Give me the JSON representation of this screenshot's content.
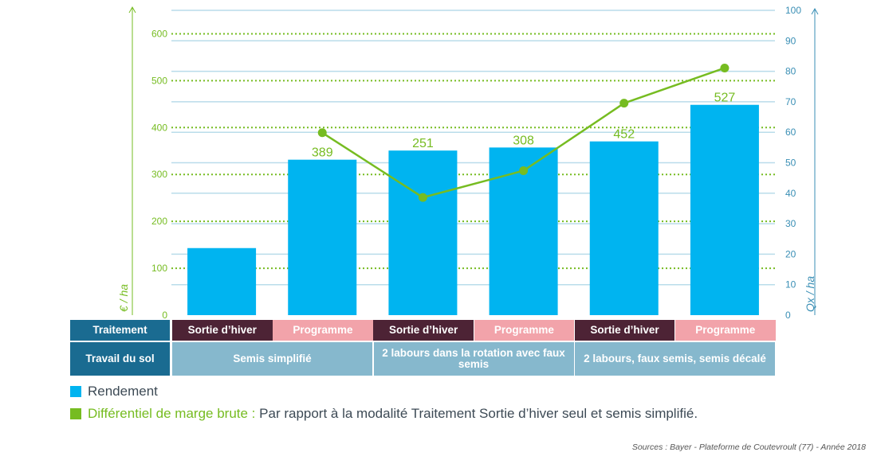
{
  "chart_data": {
    "type": "bar",
    "categories": [
      "Sortie d'hiver",
      "Programme",
      "Sortie d'hiver",
      "Programme",
      "Sortie d'hiver",
      "Programme"
    ],
    "series": [
      {
        "name": "Rendement",
        "kind": "bar",
        "axis": "right",
        "values": [
          22,
          51,
          54,
          55,
          57,
          69
        ],
        "labels": [
          "",
          "389",
          "251",
          "308",
          "452",
          "527"
        ],
        "color": "#00b4f0"
      },
      {
        "name": "Différentiel de marge brute",
        "kind": "line",
        "axis": "left",
        "values": [
          null,
          389,
          251,
          308,
          452,
          527
        ],
        "color": "#76bc21"
      }
    ],
    "y_left": {
      "label": "€ / ha",
      "ylim": [
        0,
        650
      ],
      "ticks": [
        0,
        100,
        200,
        300,
        400,
        500,
        600
      ],
      "color": "#76bc21"
    },
    "y_right": {
      "label": "Qx / ha",
      "ylim": [
        0,
        100
      ],
      "ticks": [
        0,
        10,
        20,
        30,
        40,
        50,
        60,
        70,
        80,
        90,
        100
      ],
      "color": "#3a8fb5"
    },
    "grid": true
  },
  "table": {
    "row1_header": "Traitement",
    "row1_cells": [
      "Sortie d’hiver",
      "Programme",
      "Sortie d’hiver",
      "Programme",
      "Sortie d’hiver",
      "Programme"
    ],
    "row2_header": "Travail du sol",
    "row2_groups": [
      "Semis simplifié",
      "2 labours dans la rotation avec faux semis",
      "2 labours, faux semis, semis décalé"
    ],
    "colors": {
      "header": "#1a6b91",
      "sortie": "#4d2335",
      "programme": "#f2a3aa",
      "group": "#86b8cd"
    }
  },
  "legend": {
    "rendement": "Rendement",
    "marge_bold": "Différentiel de marge brute :",
    "marge_text": " Par rapport à la modalité Traitement Sortie d’hiver seul et semis simplifié."
  },
  "source": "Sources : Bayer - Plateforme de Coutevroult (77) - Année 2018"
}
